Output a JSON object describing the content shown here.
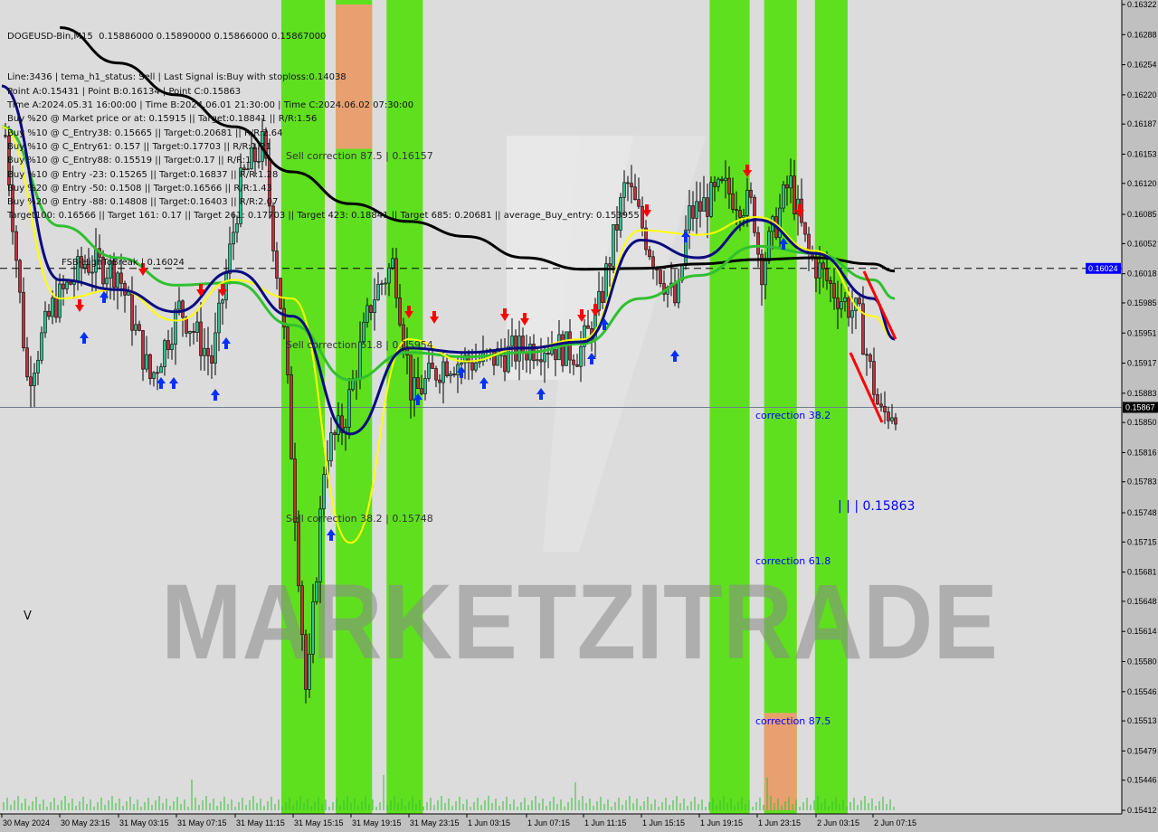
{
  "header": {
    "symbol_line": "DOGEUSD-Bin,M15  0.15886000 0.15890000 0.15866000 0.15867000",
    "info_lines": [
      "Line:3436 | tema_h1_status: Sell | Last Signal is:Buy with stoploss:0.14038",
      "Point A:0.15431 | Point B:0.16134 | Point C:0.15863",
      "Time A:2024.05.31 16:00:00 | Time B:2024.06.01 21:30:00 | Time C:2024.06.02 07:30:00",
      "Buy %20 @ Market price or at: 0.15915 || Target:0.18841 || R/R:1.56",
      "Buy %10 @ C_Entry38: 0.15665 || Target:0.20681 || R/R:2.64",
      "Buy %10 @ C_Entry61: 0.157 || Target:0.17703 || R/R:1.21",
      "Buy %10 @ C_Entry88: 0.15519 || Target:0.17 || R/R:1",
      "Buy %10 @ Entry -23: 0.15265 || Target:0.16837 || R/R:1.28",
      "Buy %20 @ Entry -50: 0.1508 || Target:0.16566 || R/R:1.43",
      "Buy %20 @ Entry -88: 0.14808 || Target:0.16403 || R/R:2.07",
      "Target100: 0.16566 || Target 161: 0.17 || Target 261: 0.17703 || Target 423: 0.18841 || Target 685: 0.20681 || average_Buy_entry: 0.153955"
    ]
  },
  "chart_labels": {
    "sell_correction_875": "Sell correction 87.5 | 0.16157",
    "sell_correction_618": "Sell correction 61.8 | 0.15954",
    "sell_correction_382": "Sell correction 38.2 | 0.15748",
    "fsb_label": "FSB-HighToBreak | 0.16024",
    "correction_382": "correction 38.2",
    "correction_618": "correction 61.8",
    "correction_875": "correction 87.5",
    "point_c_label": "| | | 0.15863",
    "v_marker": "V",
    "watermark": "MARKETZITRADE"
  },
  "colors": {
    "background": "#dcdcdc",
    "axis_bg": "#c0c0c0",
    "band_green": "#5fe01e",
    "band_orange": "#e8a070",
    "bull_candle": "#2fbf8f",
    "bear_candle": "#c0303a",
    "ma_black": "#000000",
    "ma_blue": "#0a0a80",
    "ma_green": "#30c030",
    "ma_yellow": "#ffff00",
    "sell_arrow": "#ff0000",
    "buy_arrow": "#0030ff",
    "label_blue": "#0000ff",
    "current_price_bg": "#000000",
    "fsb_price_bg": "#0000ff"
  },
  "chart_data": {
    "type": "candlestick",
    "symbol": "DOGEUSD-Bin",
    "timeframe": "M15",
    "ylim": [
      0.15412,
      0.16322
    ],
    "y_ticks": [
      "0.16322",
      "0.16288",
      "0.16254",
      "0.16220",
      "0.16187",
      "0.16153",
      "0.16120",
      "0.16085",
      "0.16052",
      "0.16018",
      "0.15985",
      "0.15951",
      "0.15917",
      "0.15883",
      "0.15850",
      "0.15816",
      "0.15783",
      "0.15748",
      "0.15715",
      "0.15681",
      "0.15648",
      "0.15614",
      "0.15580",
      "0.15546",
      "0.15513",
      "0.15479",
      "0.15446",
      "0.15412"
    ],
    "x_ticks": [
      "30 May 2024",
      "30 May 23:15",
      "31 May 03:15",
      "31 May 07:15",
      "31 May 11:15",
      "31 May 15:15",
      "31 May 19:15",
      "31 May 23:15",
      "1 Jun 03:15",
      "1 Jun 07:15",
      "1 Jun 11:15",
      "1 Jun 15:15",
      "1 Jun 19:15",
      "1 Jun 23:15",
      "2 Jun 03:15",
      "2 Jun 07:15"
    ],
    "current_price": "0.15867",
    "fsb_price": "0.16024",
    "approx_close_path": [
      [
        "2024-05-30 19:30",
        0.16174
      ],
      [
        "2024-05-30 21:00",
        0.15898
      ],
      [
        "2024-05-30 22:45",
        0.1598
      ],
      [
        "2024-05-31 01:00",
        0.16031
      ],
      [
        "2024-05-31 03:15",
        0.16021
      ],
      [
        "2024-05-31 05:30",
        0.15898
      ],
      [
        "2024-05-31 07:30",
        0.1598
      ],
      [
        "2024-05-31 09:45",
        0.15919
      ],
      [
        "2024-05-31 11:45",
        0.16123
      ],
      [
        "2024-05-31 13:15",
        0.16164
      ],
      [
        "2024-05-31 14:45",
        0.15939
      ],
      [
        "2024-05-31 16:15",
        0.15531
      ],
      [
        "2024-05-31 17:30",
        0.15816
      ],
      [
        "2024-05-31 18:45",
        0.15847
      ],
      [
        "2024-05-31 20:45",
        0.1599
      ],
      [
        "2024-05-31 22:15",
        0.16031
      ],
      [
        "2024-05-31 23:30",
        0.15878
      ],
      [
        "2024-06-01 01:45",
        0.15919
      ],
      [
        "2024-06-01 04:15",
        0.15919
      ],
      [
        "2024-06-01 08:30",
        0.15939
      ],
      [
        "2024-06-01 11:00",
        0.15929
      ],
      [
        "2024-06-01 12:15",
        0.1597
      ],
      [
        "2024-06-01 14:15",
        0.16123
      ],
      [
        "2024-06-01 16:00",
        0.16041
      ],
      [
        "2024-06-01 17:45",
        0.1598
      ],
      [
        "2024-06-01 18:30",
        0.16082
      ],
      [
        "2024-06-01 21:00",
        0.16113
      ],
      [
        "2024-06-01 23:00",
        0.16092
      ],
      [
        "2024-06-01 23:30",
        0.16021
      ],
      [
        "2024-06-02 01:30",
        0.16123
      ],
      [
        "2024-06-02 02:45",
        0.16041
      ],
      [
        "2024-06-02 04:30",
        0.16
      ],
      [
        "2024-06-02 06:15",
        0.1597
      ],
      [
        "2024-06-02 07:45",
        0.15857
      ],
      [
        "2024-06-02 08:45",
        0.15867
      ]
    ],
    "ma_times": [
      "2024-05-30 19:15",
      "2024-05-30 23:15",
      "2024-05-31 03:15",
      "2024-05-31 07:15",
      "2024-05-31 11:15",
      "2024-05-31 15:15",
      "2024-05-31 19:15",
      "2024-05-31 23:15",
      "2024-06-01 03:15",
      "2024-06-01 07:15",
      "2024-06-01 11:15",
      "2024-06-01 15:15",
      "2024-06-01 19:15",
      "2024-06-01 23:15",
      "2024-06-02 03:15",
      "2024-06-02 07:15",
      "2024-06-02 08:45"
    ],
    "series": [
      {
        "color": "#000000",
        "values": [
          null,
          0.16296,
          0.16256,
          0.1622,
          0.16184,
          0.16133,
          0.16097,
          0.16077,
          0.1606,
          0.16036,
          0.16023,
          0.16024,
          0.16029,
          0.16034,
          0.16036,
          0.16029,
          0.16021
        ]
      },
      {
        "color": "#30c030",
        "values": [
          0.16184,
          0.16072,
          0.16036,
          0.16005,
          0.16008,
          0.1596,
          0.15898,
          0.15929,
          0.15924,
          0.15929,
          0.15939,
          0.1599,
          0.16016,
          0.16049,
          0.16041,
          0.16011,
          0.1599
        ]
      },
      {
        "color": "#ffff00",
        "values": [
          0.16184,
          0.1599,
          0.16,
          0.15965,
          0.16011,
          0.1599,
          0.15714,
          0.15944,
          0.15919,
          0.15934,
          0.15944,
          0.16067,
          0.16062,
          0.16082,
          0.16044,
          0.1597,
          0.15944
        ]
      },
      {
        "color": "#0a0a80",
        "values": [
          0.1623,
          0.16011,
          0.16,
          0.15975,
          0.16021,
          0.1597,
          0.15837,
          0.15934,
          0.15929,
          0.15934,
          0.15941,
          0.16056,
          0.16036,
          0.16079,
          0.16041,
          0.1599,
          0.15944
        ]
      }
    ],
    "bands": [
      {
        "start": "2024-05-31 14:30",
        "end": "2024-05-31 17:30",
        "color": "green"
      },
      {
        "start": "2024-05-31 18:15",
        "end": "2024-05-31 20:45",
        "color": "green",
        "orange_from": 0.16159,
        "orange_to": 0.16322
      },
      {
        "start": "2024-05-31 21:45",
        "end": "2024-06-01 00:15",
        "color": "green"
      },
      {
        "start": "2024-06-01 20:00",
        "end": "2024-06-01 22:45",
        "color": "green"
      },
      {
        "start": "2024-06-01 23:45",
        "end": "2024-06-02 02:00",
        "color": "green",
        "orange_from": 0.15412,
        "orange_to": 0.15522
      },
      {
        "start": "2024-06-02 03:15",
        "end": "2024-06-02 05:30",
        "color": "green"
      }
    ],
    "grid": false
  }
}
